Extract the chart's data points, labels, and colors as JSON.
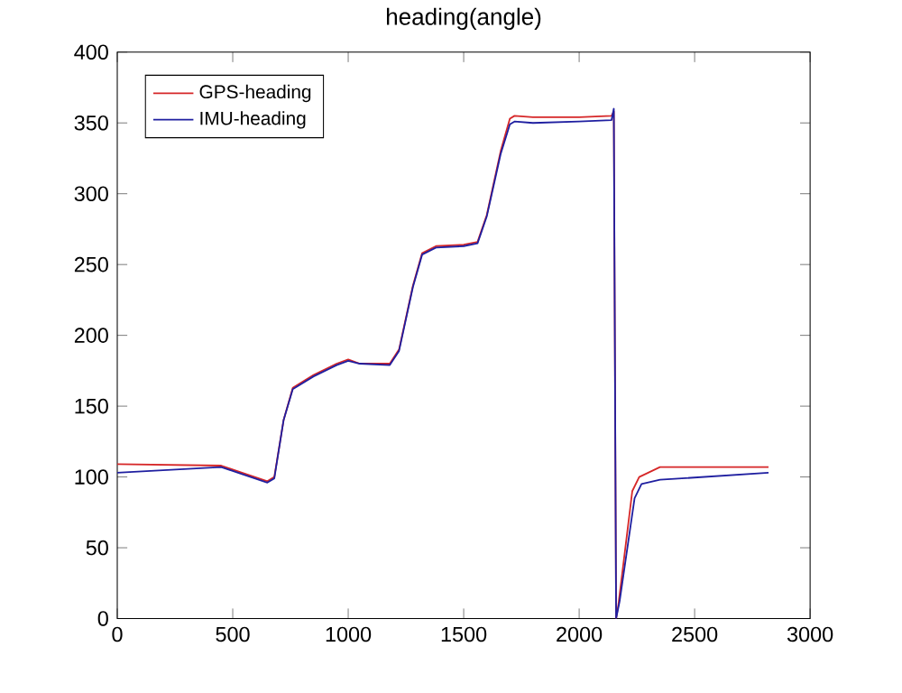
{
  "chart_data": {
    "type": "line",
    "title": "heading(angle)",
    "xlim": [
      0,
      3000
    ],
    "ylim": [
      0,
      400
    ],
    "xticks": [
      0,
      500,
      1000,
      1500,
      2000,
      2500,
      3000
    ],
    "yticks": [
      0,
      50,
      100,
      150,
      200,
      250,
      300,
      350,
      400
    ],
    "legend": "top left",
    "grid": false,
    "series": [
      {
        "name": "GPS-heading",
        "color": "#d62728",
        "x": [
          0,
          450,
          540,
          650,
          680,
          720,
          760,
          850,
          950,
          1000,
          1050,
          1180,
          1220,
          1280,
          1320,
          1380,
          1500,
          1560,
          1600,
          1660,
          1700,
          1720,
          1800,
          2000,
          2140,
          2150,
          2160,
          2170,
          2230,
          2260,
          2350,
          2820
        ],
        "values": [
          109,
          108,
          103,
          97,
          100,
          140,
          163,
          172,
          180,
          183,
          180,
          180,
          190,
          235,
          258,
          263,
          264,
          266,
          285,
          330,
          353,
          355,
          354,
          354,
          355,
          358,
          0,
          10,
          90,
          100,
          107,
          107
        ]
      },
      {
        "name": "IMU-heading",
        "color": "#1f1fa0",
        "x": [
          0,
          450,
          540,
          650,
          680,
          720,
          760,
          850,
          950,
          1000,
          1050,
          1180,
          1220,
          1280,
          1320,
          1380,
          1500,
          1560,
          1600,
          1660,
          1700,
          1720,
          1800,
          2000,
          2140,
          2150,
          2160,
          2175,
          2240,
          2270,
          2350,
          2820
        ],
        "values": [
          103,
          107,
          102,
          96,
          99,
          140,
          162,
          171,
          179,
          182,
          180,
          179,
          189,
          234,
          257,
          262,
          263,
          265,
          284,
          328,
          349,
          351,
          350,
          351,
          352,
          360,
          0,
          12,
          85,
          95,
          98,
          103
        ]
      }
    ]
  }
}
